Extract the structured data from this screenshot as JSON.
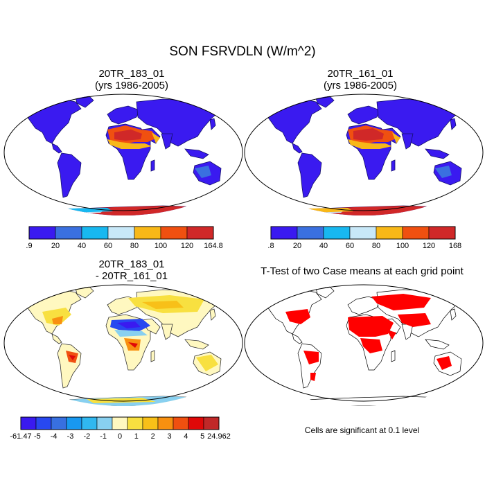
{
  "figure": {
    "main_title": "SON FSRVDLN (W/m^2)"
  },
  "panels": [
    {
      "title_line1": "20TR_183_01",
      "title_line2": "(yrs 1986-2005)",
      "colorbar": {
        "labels": [
          ".9",
          "20",
          "40",
          "60",
          "80",
          "100",
          "120",
          "164.8"
        ],
        "colors": [
          "#3a1af0",
          "#3a70e0",
          "#18b8f0",
          "#c8e8f8",
          "#f8b818",
          "#f05010",
          "#d02828"
        ]
      }
    },
    {
      "title_line1": "20TR_161_01",
      "title_line2": "(yrs 1986-2005)",
      "colorbar": {
        "labels": [
          ".8",
          "20",
          "40",
          "60",
          "80",
          "100",
          "120",
          "168"
        ],
        "colors": [
          "#3a1af0",
          "#3a70e0",
          "#18b8f0",
          "#c8e8f8",
          "#f8b818",
          "#f05010",
          "#d02828"
        ]
      }
    },
    {
      "title_line1": "20TR_183_01",
      "title_line2": "- 20TR_161_01",
      "colorbar": {
        "labels": [
          "-61.47",
          "-5",
          "-4",
          "-3",
          "-2",
          "-1",
          "0",
          "1",
          "2",
          "3",
          "4",
          "5",
          "24.962"
        ],
        "colors": [
          "#3a1af0",
          "#2848f0",
          "#3870e0",
          "#1898f0",
          "#30b8f0",
          "#88d0f0",
          "#fff8c0",
          "#f8e040",
          "#f8c018",
          "#f89010",
          "#f05010",
          "#e00808",
          "#c02828"
        ]
      }
    },
    {
      "title_line1": "T-Test of two Case means at each grid point",
      "note": "Cells are significant at 0.1 level",
      "significant_color": "#ff0000"
    }
  ]
}
